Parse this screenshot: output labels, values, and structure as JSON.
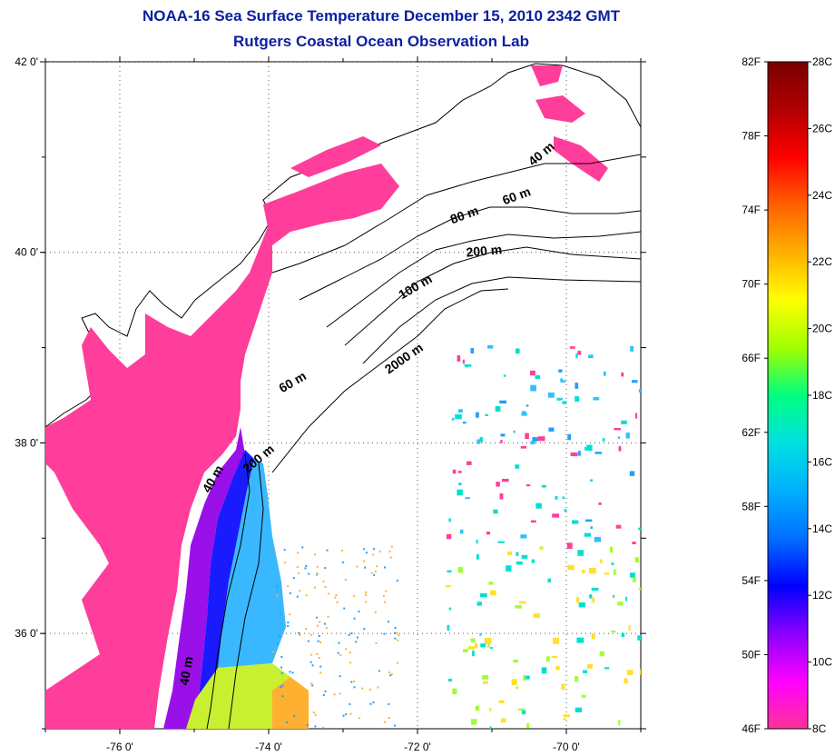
{
  "header": {
    "title_line1": "NOAA-16 Sea Surface Temperature December 15, 2010 2342 GMT",
    "title_line2": "Rutgers Coastal Ocean Observation Lab"
  },
  "map": {
    "lon_range": [
      -77.0,
      -69.0
    ],
    "lat_range": [
      35.0,
      42.0
    ],
    "lon_ticks": [
      {
        "value": -76,
        "label": "-76 0'"
      },
      {
        "value": -74,
        "label": "-74 0'"
      },
      {
        "value": -72,
        "label": "-72 0'"
      },
      {
        "value": -70,
        "label": "-70 0'"
      }
    ],
    "lat_ticks": [
      {
        "value": 36,
        "label": "36 0'"
      },
      {
        "value": 38,
        "label": "38 0'"
      },
      {
        "value": 40,
        "label": "40 0'"
      },
      {
        "value": 42,
        "label": "42 0'"
      }
    ],
    "depth_labels": [
      {
        "text": "40 m",
        "lon": -70.3,
        "lat": 41.0,
        "rotate": -40
      },
      {
        "text": "60 m",
        "lon": -70.65,
        "lat": 40.55,
        "rotate": -20
      },
      {
        "text": "80 m",
        "lon": -71.35,
        "lat": 40.35,
        "rotate": -20
      },
      {
        "text": "200 m",
        "lon": -71.1,
        "lat": 39.97,
        "rotate": -5
      },
      {
        "text": "100 m",
        "lon": -72.0,
        "lat": 39.6,
        "rotate": -30
      },
      {
        "text": "2000 m",
        "lon": -72.15,
        "lat": 38.85,
        "rotate": -35
      },
      {
        "text": "60 m",
        "lon": -73.65,
        "lat": 38.6,
        "rotate": -30
      },
      {
        "text": "40 m",
        "lon": -74.7,
        "lat": 37.6,
        "rotate": -60
      },
      {
        "text": "200 m",
        "lon": -74.1,
        "lat": 37.8,
        "rotate": -40
      },
      {
        "text": "40 m",
        "lon": -75.05,
        "lat": 35.6,
        "rotate": -80
      }
    ]
  },
  "colorbar": {
    "f_labels": [
      "82F",
      "78F",
      "74F",
      "70F",
      "66F",
      "62F",
      "58F",
      "54F",
      "50F",
      "46F"
    ],
    "c_labels": [
      "28C",
      "26C",
      "24C",
      "22C",
      "20C",
      "18C",
      "16C",
      "14C",
      "12C",
      "10C",
      "8C"
    ],
    "colors": [
      "#ff3399",
      "#ff00ff",
      "#8a00ff",
      "#0000ff",
      "#0070ff",
      "#00b0ff",
      "#00e0e0",
      "#00ff80",
      "#a0ff00",
      "#ffff00",
      "#ffb000",
      "#ff6000",
      "#ff0000",
      "#b00000",
      "#7a0000"
    ]
  }
}
